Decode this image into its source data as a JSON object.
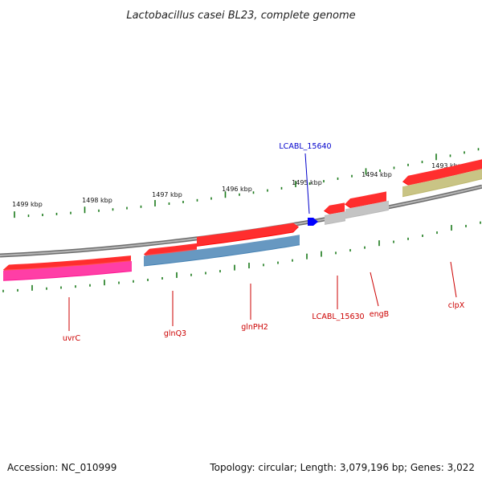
{
  "title": "Lactobacillus casei BL23, complete genome",
  "footer": {
    "accession": "Accession: NC_010999",
    "summary": "Topology: circular; Length: 3,079,196 bp; Genes: 3,022"
  },
  "colors": {
    "backbone": "#8c8c8c",
    "tick": "#1a7a1a",
    "label_red": "#cc0000",
    "label_blue": "#0000cc",
    "forward_gene": "#ff0000",
    "cds_magenta": "#ff1493",
    "cds_steel": "#4682b4",
    "cds_gray": "#b8b8b8",
    "cds_olive": "#bdb76b",
    "highlight": "#0000ff"
  },
  "scale_labels": [
    "1499 kbp",
    "1498 kbp",
    "1497 kbp",
    "1496 kbp",
    "1495 kbp",
    "1494 kbp",
    "1493 kbp"
  ],
  "gene_labels": [
    {
      "name": "uvrC",
      "color": "red"
    },
    {
      "name": "glnQ3",
      "color": "red"
    },
    {
      "name": "glnPH2",
      "color": "red"
    },
    {
      "name": "LCABL_15630",
      "color": "red"
    },
    {
      "name": "engB",
      "color": "red"
    },
    {
      "name": "clpX",
      "color": "red"
    },
    {
      "name": "LCABL_15640",
      "color": "blue"
    }
  ]
}
